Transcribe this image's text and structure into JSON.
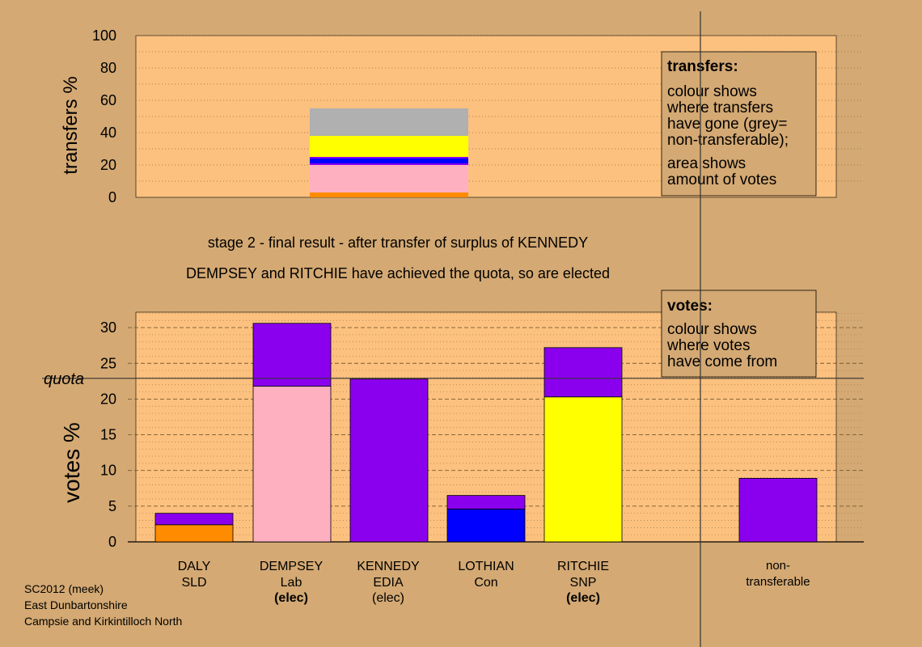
{
  "top_chart": {
    "ylabel": "transfers %",
    "yticks": [
      0,
      20,
      40,
      60,
      80,
      100
    ],
    "ylim": [
      0,
      100
    ]
  },
  "legend_transfers": {
    "title": "transfers:",
    "lines": [
      "colour shows",
      "where transfers",
      "have gone (grey=",
      "non-transferable);"
    ],
    "lines2": [
      "area shows",
      "amount of votes"
    ]
  },
  "stage_text": "stage 2 - final result - after transfer of surplus of KENNEDY",
  "elected_text": "DEMPSEY and RITCHIE have achieved the quota, so are elected",
  "bottom_chart": {
    "ylabel": "votes %",
    "yticks": [
      0,
      5,
      10,
      15,
      20,
      25,
      30
    ],
    "ylim": [
      0,
      32
    ],
    "quota_label": "quota",
    "quota_value": 22.9
  },
  "legend_votes": {
    "title": "votes:",
    "lines": [
      "colour shows",
      "where votes",
      "have come from"
    ]
  },
  "candidates": [
    {
      "name": "DALY",
      "party": "SLD",
      "status": ""
    },
    {
      "name": "DEMPSEY",
      "party": "Lab",
      "status": "(elec)"
    },
    {
      "name": "KENNEDY",
      "party": "EDIA",
      "status": "(elec)"
    },
    {
      "name": "LOTHIAN",
      "party": "Con",
      "status": ""
    },
    {
      "name": "RITCHIE",
      "party": "SNP",
      "status": "(elec)"
    }
  ],
  "nontransferable_label": [
    "non-",
    "transferable"
  ],
  "footer": {
    "line1": "SC2012 (meek)",
    "line2": "East Dunbartonshire",
    "line3": "Campsie and Kirkintilloch North"
  },
  "colors": {
    "background": "#d4a973",
    "plot_bg": "#fcc17e",
    "SLD": "#ff8c00",
    "Lab": "#ffb0c0",
    "EDIA": "#8a00ee",
    "Con": "#0000ff",
    "SNP": "#ffff00",
    "nontransferable": "#b0b0b0"
  },
  "chart_data": [
    {
      "type": "bar",
      "title": "",
      "ylabel": "transfers %",
      "ylim": [
        0,
        100
      ],
      "bars": [
        {
          "category": "KENNEDY",
          "segments": [
            {
              "party": "SLD",
              "from": 0,
              "to": 3
            },
            {
              "party": "Lab",
              "from": 3,
              "to": 20
            },
            {
              "party": "EDIA",
              "from": 20,
              "to": 21
            },
            {
              "party": "Con",
              "from": 21,
              "to": 24
            },
            {
              "party": "EDIA",
              "from": 24,
              "to": 25
            },
            {
              "party": "SNP",
              "from": 25,
              "to": 38
            },
            {
              "party": "nontransferable",
              "from": 38,
              "to": 55
            }
          ]
        }
      ]
    },
    {
      "type": "bar",
      "title": "",
      "ylabel": "votes %",
      "ylim": [
        0,
        32
      ],
      "quota": 22.9,
      "bars": [
        {
          "category": "DALY",
          "segments": [
            {
              "party": "SLD",
              "from": 0,
              "to": 2.4
            },
            {
              "party": "EDIA",
              "from": 2.4,
              "to": 4.0
            }
          ]
        },
        {
          "category": "DEMPSEY",
          "segments": [
            {
              "party": "Lab",
              "from": 0,
              "to": 21.8
            },
            {
              "party": "EDIA",
              "from": 21.8,
              "to": 30.6
            }
          ]
        },
        {
          "category": "KENNEDY",
          "segments": [
            {
              "party": "EDIA",
              "from": 0,
              "to": 22.8
            }
          ]
        },
        {
          "category": "LOTHIAN",
          "segments": [
            {
              "party": "Con",
              "from": 0,
              "to": 4.6
            },
            {
              "party": "EDIA",
              "from": 4.6,
              "to": 6.5
            }
          ]
        },
        {
          "category": "RITCHIE",
          "segments": [
            {
              "party": "SNP",
              "from": 0,
              "to": 20.3
            },
            {
              "party": "EDIA",
              "from": 20.3,
              "to": 27.2
            }
          ]
        },
        {
          "category": "non-transferable",
          "segments": [
            {
              "party": "EDIA",
              "from": 0,
              "to": 8.9
            }
          ]
        }
      ]
    }
  ]
}
